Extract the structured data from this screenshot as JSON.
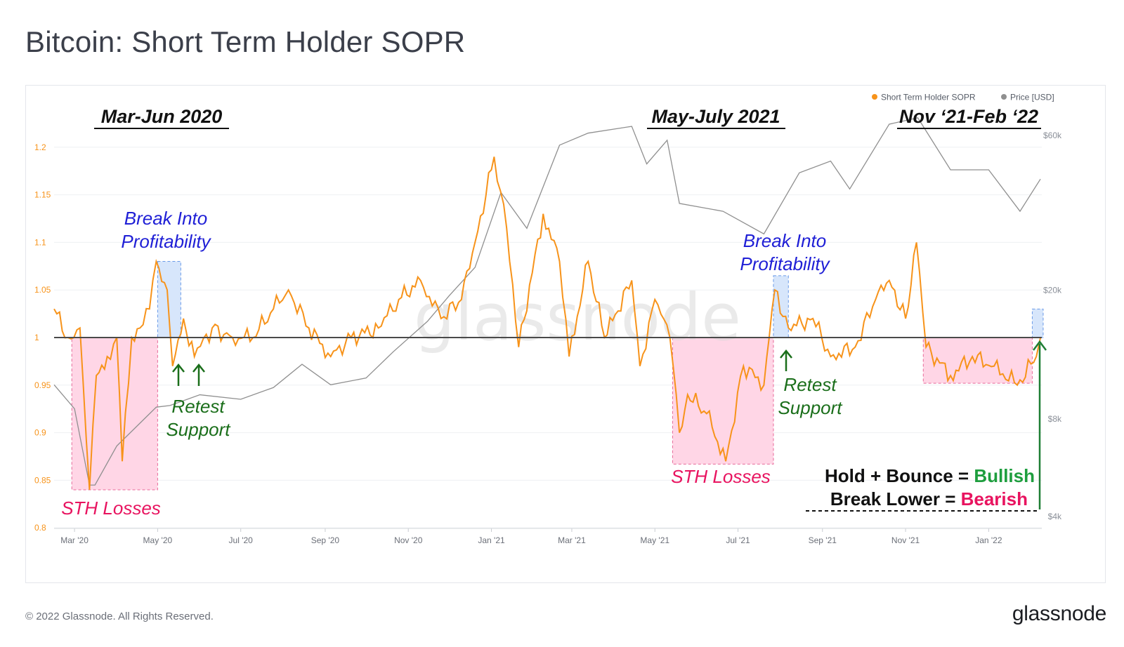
{
  "page": {
    "title": "Bitcoin: Short Term Holder SOPR",
    "copyright": "© 2022 Glassnode. All Rights Reserved.",
    "logo": "glassnode",
    "watermark": "glassnode"
  },
  "legend": [
    {
      "name": "Short Term Holder SOPR",
      "color": "#f7931a"
    },
    {
      "name": "Price [USD]",
      "color": "#8f8f8f"
    }
  ],
  "annotations": {
    "periods": [
      "Mar-Jun 2020",
      "May-July 2021",
      "Nov ‘21-Feb ‘22"
    ],
    "break_into_profitability": "Break Into Profitability",
    "break_into_profitability_lines": [
      "Break Into",
      "Profitability"
    ],
    "retest_support_lines": [
      "Retest",
      "Support"
    ],
    "sth_losses": "STH Losses",
    "rule_line1": {
      "prefix": "Hold + Bounce = ",
      "signal": "Bullish",
      "signal_color": "#1e9e3e"
    },
    "rule_line2": {
      "prefix": "Break Lower = ",
      "signal": "Bearish",
      "signal_color": "#e8135f"
    }
  },
  "chart_data": {
    "type": "line",
    "title": "Bitcoin: Short Term Holder SOPR",
    "x_ticks": [
      "Mar '20",
      "May '20",
      "Jul '20",
      "Sep '20",
      "Nov '20",
      "Jan '21",
      "Mar '21",
      "May '21",
      "Jul '21",
      "Sep '21",
      "Nov '21",
      "Jan '22"
    ],
    "y_left": {
      "ticks": [
        "0.8",
        "0.85",
        "0.9",
        "0.95",
        "1",
        "1.05",
        "1.1",
        "1.15",
        "1.2"
      ],
      "range": [
        0.8,
        1.2
      ],
      "color": "#f7931a"
    },
    "y_right": {
      "ticks": [
        "$4k",
        "$8k",
        "$20k",
        "$60k"
      ],
      "scale": "log",
      "color": "#8a8f98"
    },
    "reference_line": 1.0,
    "series": [
      {
        "name": "Short Term Holder SOPR",
        "axis": "left",
        "color": "#f7931a",
        "points": [
          [
            "2020-02-15",
            1.03
          ],
          [
            "2020-02-25",
            1.0
          ],
          [
            "2020-03-05",
            1.01
          ],
          [
            "2020-03-12",
            0.84
          ],
          [
            "2020-03-17",
            0.96
          ],
          [
            "2020-03-25",
            0.98
          ],
          [
            "2020-04-01",
            1.0
          ],
          [
            "2020-04-05",
            0.87
          ],
          [
            "2020-04-12",
            1.0
          ],
          [
            "2020-04-18",
            1.01
          ],
          [
            "2020-04-25",
            1.03
          ],
          [
            "2020-04-30",
            1.08
          ],
          [
            "2020-05-08",
            1.05
          ],
          [
            "2020-05-12",
            0.97
          ],
          [
            "2020-05-20",
            1.02
          ],
          [
            "2020-05-28",
            0.98
          ],
          [
            "2020-06-10",
            1.01
          ],
          [
            "2020-06-25",
            1.0
          ],
          [
            "2020-07-10",
            1.0
          ],
          [
            "2020-07-25",
            1.03
          ],
          [
            "2020-08-05",
            1.05
          ],
          [
            "2020-08-20",
            1.01
          ],
          [
            "2020-09-05",
            0.98
          ],
          [
            "2020-09-20",
            1.0
          ],
          [
            "2020-10-10",
            1.01
          ],
          [
            "2020-10-25",
            1.04
          ],
          [
            "2020-11-10",
            1.06
          ],
          [
            "2020-11-25",
            1.02
          ],
          [
            "2020-12-10",
            1.04
          ],
          [
            "2020-12-20",
            1.1
          ],
          [
            "2021-01-03",
            1.19
          ],
          [
            "2021-01-10",
            1.14
          ],
          [
            "2021-01-21",
            0.99
          ],
          [
            "2021-02-08",
            1.13
          ],
          [
            "2021-02-20",
            1.08
          ],
          [
            "2021-02-27",
            0.98
          ],
          [
            "2021-03-13",
            1.08
          ],
          [
            "2021-03-25",
            1.0
          ],
          [
            "2021-04-14",
            1.06
          ],
          [
            "2021-04-20",
            0.97
          ],
          [
            "2021-05-01",
            1.04
          ],
          [
            "2021-05-12",
            1.0
          ],
          [
            "2021-05-19",
            0.9
          ],
          [
            "2021-05-25",
            0.94
          ],
          [
            "2021-06-08",
            0.92
          ],
          [
            "2021-06-22",
            0.87
          ],
          [
            "2021-07-05",
            0.97
          ],
          [
            "2021-07-20",
            0.95
          ],
          [
            "2021-07-28",
            1.05
          ],
          [
            "2021-08-07",
            1.01
          ],
          [
            "2021-08-25",
            1.02
          ],
          [
            "2021-09-07",
            0.98
          ],
          [
            "2021-09-25",
            0.99
          ],
          [
            "2021-10-10",
            1.04
          ],
          [
            "2021-10-20",
            1.06
          ],
          [
            "2021-11-01",
            1.02
          ],
          [
            "2021-11-09",
            1.1
          ],
          [
            "2021-11-16",
            0.99
          ],
          [
            "2021-12-04",
            0.96
          ],
          [
            "2021-12-20",
            0.98
          ],
          [
            "2022-01-05",
            0.97
          ],
          [
            "2022-01-22",
            0.95
          ],
          [
            "2022-02-05",
            0.98
          ],
          [
            "2022-02-08",
            1.0
          ]
        ]
      },
      {
        "name": "Price [USD]",
        "axis": "right",
        "color": "#8f8f8f",
        "points": [
          [
            "2020-02-15",
            10200
          ],
          [
            "2020-03-01",
            8600
          ],
          [
            "2020-03-12",
            5000
          ],
          [
            "2020-03-16",
            5000
          ],
          [
            "2020-04-01",
            6600
          ],
          [
            "2020-04-30",
            8700
          ],
          [
            "2020-05-10",
            8800
          ],
          [
            "2020-06-01",
            9500
          ],
          [
            "2020-07-01",
            9200
          ],
          [
            "2020-07-25",
            10000
          ],
          [
            "2020-08-15",
            11800
          ],
          [
            "2020-09-05",
            10200
          ],
          [
            "2020-10-01",
            10700
          ],
          [
            "2020-10-21",
            12900
          ],
          [
            "2020-11-15",
            16000
          ],
          [
            "2020-12-01",
            19200
          ],
          [
            "2020-12-20",
            23500
          ],
          [
            "2021-01-08",
            40000
          ],
          [
            "2021-01-27",
            31000
          ],
          [
            "2021-02-20",
            56000
          ],
          [
            "2021-03-13",
            61000
          ],
          [
            "2021-04-14",
            64000
          ],
          [
            "2021-04-25",
            49000
          ],
          [
            "2021-05-10",
            58000
          ],
          [
            "2021-05-19",
            37000
          ],
          [
            "2021-06-20",
            35000
          ],
          [
            "2021-07-20",
            29800
          ],
          [
            "2021-08-15",
            46000
          ],
          [
            "2021-09-07",
            50000
          ],
          [
            "2021-09-21",
            41000
          ],
          [
            "2021-10-20",
            65000
          ],
          [
            "2021-11-10",
            68000
          ],
          [
            "2021-12-04",
            47000
          ],
          [
            "2022-01-01",
            47000
          ],
          [
            "2022-01-24",
            35000
          ],
          [
            "2022-02-08",
            44000
          ]
        ]
      }
    ],
    "highlight_zones": [
      {
        "label": "STH Losses",
        "from": "2020-02-28",
        "to": "2020-05-01"
      },
      {
        "label": "Break Into Profitability",
        "from": "2020-05-01",
        "to": "2020-05-18"
      },
      {
        "label": "STH Losses",
        "from": "2021-05-14",
        "to": "2021-07-27"
      },
      {
        "label": "Break Into Profitability",
        "from": "2021-07-27",
        "to": "2021-08-07"
      },
      {
        "label": "",
        "from": "2021-11-14",
        "to": "2022-02-02"
      },
      {
        "label": "",
        "from": "2022-02-02",
        "to": "2022-02-10"
      }
    ]
  }
}
